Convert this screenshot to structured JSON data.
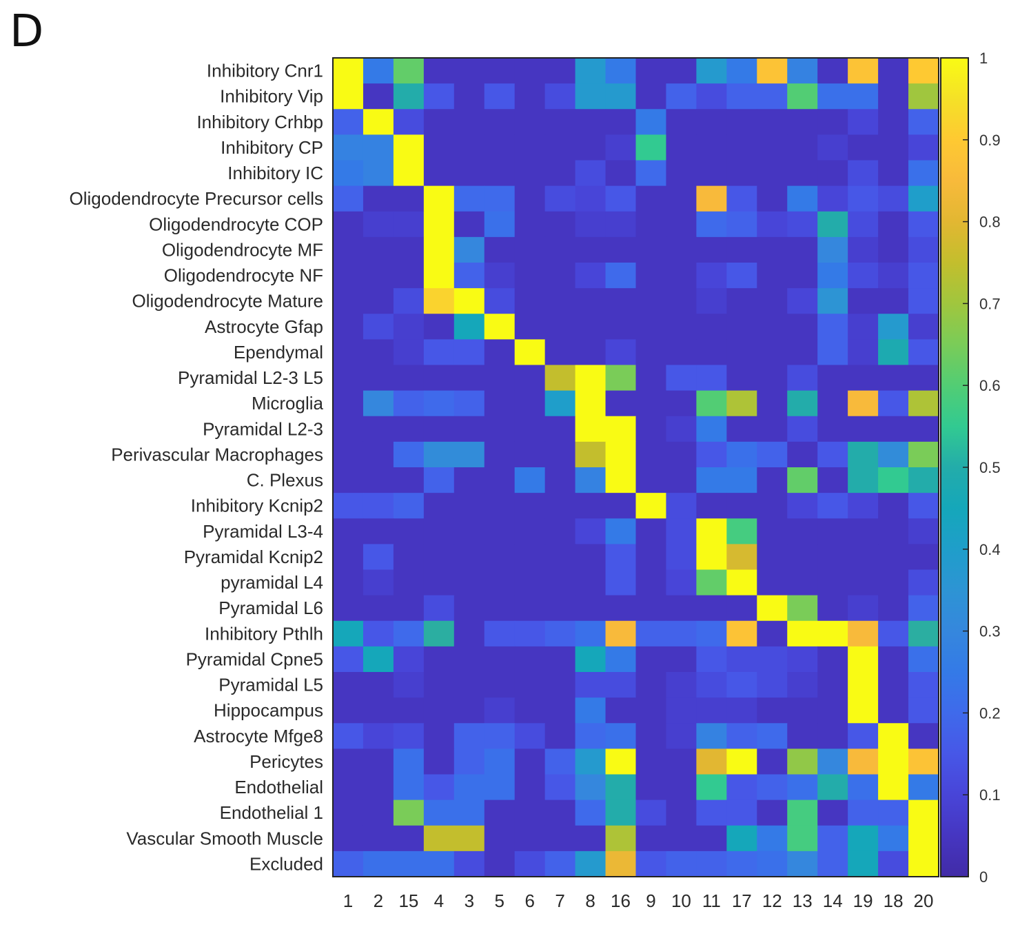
{
  "panel_label": "D",
  "chart_data": {
    "type": "heatmap",
    "title": "",
    "xlabel": "",
    "ylabel": "",
    "colormap": "parula",
    "value_range": [
      0,
      1
    ],
    "grid": false,
    "colorbar": {
      "position": "right",
      "ticks": [
        0,
        0.1,
        0.2,
        0.3,
        0.4,
        0.5,
        0.6,
        0.7,
        0.8,
        0.9,
        1
      ],
      "tick_labels": [
        "0",
        "0.1",
        "0.2",
        "0.3",
        "0.4",
        "0.5",
        "0.6",
        "0.7",
        "0.8",
        "0.9",
        "1"
      ]
    },
    "x_categories": [
      "1",
      "2",
      "15",
      "4",
      "3",
      "5",
      "6",
      "7",
      "8",
      "16",
      "9",
      "10",
      "11",
      "17",
      "12",
      "13",
      "14",
      "19",
      "18",
      "20"
    ],
    "y_categories": [
      "Inhibitory Cnr1",
      "Inhibitory Vip",
      "Inhibitory Crhbp",
      "Inhibitory CP",
      "Inhibitory IC",
      "Oligodendrocyte Precursor cells",
      "Oligodendrocyte COP",
      "Oligodendrocyte MF",
      "Oligodendrocyte NF",
      "Oligodendrocyte Mature",
      "Astrocyte Gfap",
      "Ependymal",
      "Pyramidal L2-3 L5",
      "Microglia",
      "Pyramidal L2-3",
      "Perivascular Macrophages",
      "C. Plexus",
      "Inhibitory Kcnip2",
      "Pyramidal L3-4",
      "Pyramidal Kcnip2",
      "pyramidal L4",
      "Pyramidal L6",
      "Inhibitory Pthlh",
      "Pyramidal Cpne5",
      "Pyramidal L5",
      "Hippocampus",
      "Astrocyte Mfge8",
      "Pericytes",
      "Endothelial",
      "Endothelial 1",
      "Vascular Smooth Muscle",
      "Excluded"
    ],
    "values": [
      [
        1,
        0.25,
        0.62,
        0.05,
        0.05,
        0.05,
        0.05,
        0.05,
        0.38,
        0.25,
        0.05,
        0.05,
        0.38,
        0.25,
        0.88,
        0.28,
        0.05,
        0.88,
        0.05,
        0.9
      ],
      [
        1,
        0.05,
        0.5,
        0.15,
        0.05,
        0.15,
        0.05,
        0.12,
        0.38,
        0.38,
        0.05,
        0.18,
        0.12,
        0.18,
        0.18,
        0.6,
        0.22,
        0.22,
        0.05,
        0.7
      ],
      [
        0.18,
        1,
        0.12,
        0.05,
        0.05,
        0.05,
        0.05,
        0.05,
        0.05,
        0.05,
        0.25,
        0.05,
        0.05,
        0.05,
        0.05,
        0.05,
        0.05,
        0.1,
        0.05,
        0.18
      ],
      [
        0.28,
        0.28,
        1,
        0.05,
        0.05,
        0.05,
        0.05,
        0.05,
        0.05,
        0.08,
        0.55,
        0.05,
        0.05,
        0.05,
        0.05,
        0.05,
        0.08,
        0.05,
        0.05,
        0.1
      ],
      [
        0.25,
        0.28,
        1,
        0.05,
        0.05,
        0.05,
        0.05,
        0.05,
        0.12,
        0.05,
        0.2,
        0.05,
        0.05,
        0.05,
        0.05,
        0.05,
        0.05,
        0.12,
        0.05,
        0.22
      ],
      [
        0.18,
        0.05,
        0.05,
        1,
        0.2,
        0.2,
        0.05,
        0.12,
        0.1,
        0.15,
        0.05,
        0.05,
        0.85,
        0.15,
        0.05,
        0.25,
        0.1,
        0.15,
        0.12,
        0.4
      ],
      [
        0.05,
        0.08,
        0.08,
        1,
        0.05,
        0.22,
        0.05,
        0.05,
        0.08,
        0.08,
        0.05,
        0.05,
        0.2,
        0.18,
        0.1,
        0.12,
        0.5,
        0.12,
        0.05,
        0.15
      ],
      [
        0.05,
        0.05,
        0.05,
        1,
        0.3,
        0.05,
        0.05,
        0.05,
        0.05,
        0.05,
        0.05,
        0.05,
        0.05,
        0.05,
        0.05,
        0.05,
        0.3,
        0.08,
        0.05,
        0.12
      ],
      [
        0.05,
        0.05,
        0.05,
        1,
        0.18,
        0.08,
        0.05,
        0.05,
        0.1,
        0.2,
        0.05,
        0.05,
        0.1,
        0.15,
        0.05,
        0.05,
        0.25,
        0.12,
        0.08,
        0.15
      ],
      [
        0.05,
        0.05,
        0.12,
        0.92,
        1,
        0.12,
        0.05,
        0.05,
        0.05,
        0.05,
        0.05,
        0.05,
        0.08,
        0.05,
        0.05,
        0.1,
        0.35,
        0.05,
        0.05,
        0.15
      ],
      [
        0.05,
        0.12,
        0.08,
        0.05,
        0.45,
        1,
        0.05,
        0.05,
        0.05,
        0.05,
        0.05,
        0.05,
        0.05,
        0.05,
        0.05,
        0.05,
        0.18,
        0.08,
        0.38,
        0.08
      ],
      [
        0.05,
        0.05,
        0.08,
        0.15,
        0.15,
        0.05,
        1,
        0.05,
        0.05,
        0.1,
        0.05,
        0.05,
        0.05,
        0.05,
        0.05,
        0.05,
        0.18,
        0.08,
        0.48,
        0.15
      ],
      [
        0.05,
        0.05,
        0.05,
        0.05,
        0.05,
        0.05,
        0.05,
        0.75,
        1,
        0.65,
        0.05,
        0.15,
        0.15,
        0.05,
        0.05,
        0.12,
        0.05,
        0.05,
        0.05,
        0.05
      ],
      [
        0.05,
        0.3,
        0.18,
        0.2,
        0.18,
        0.05,
        0.05,
        0.4,
        1,
        0.05,
        0.05,
        0.05,
        0.6,
        0.72,
        0.05,
        0.5,
        0.05,
        0.85,
        0.15,
        0.72
      ],
      [
        0.05,
        0.05,
        0.05,
        0.05,
        0.05,
        0.05,
        0.05,
        0.05,
        1,
        1,
        0.05,
        0.08,
        0.25,
        0.05,
        0.05,
        0.12,
        0.05,
        0.05,
        0.05,
        0.05
      ],
      [
        0.05,
        0.05,
        0.2,
        0.32,
        0.32,
        0.05,
        0.05,
        0.05,
        0.75,
        1,
        0.05,
        0.05,
        0.15,
        0.22,
        0.18,
        0.05,
        0.15,
        0.5,
        0.32,
        0.65
      ],
      [
        0.05,
        0.05,
        0.05,
        0.18,
        0.05,
        0.05,
        0.25,
        0.05,
        0.28,
        1,
        0.05,
        0.05,
        0.25,
        0.25,
        0.05,
        0.62,
        0.05,
        0.5,
        0.55,
        0.5
      ],
      [
        0.15,
        0.15,
        0.18,
        0.05,
        0.05,
        0.05,
        0.05,
        0.05,
        0.05,
        0.05,
        1,
        0.12,
        0.05,
        0.05,
        0.05,
        0.1,
        0.15,
        0.1,
        0.05,
        0.15
      ],
      [
        0.05,
        0.05,
        0.05,
        0.05,
        0.05,
        0.05,
        0.05,
        0.05,
        0.1,
        0.25,
        0.05,
        0.12,
        1,
        0.58,
        0.05,
        0.05,
        0.05,
        0.05,
        0.05,
        0.08
      ],
      [
        0.05,
        0.15,
        0.05,
        0.05,
        0.05,
        0.05,
        0.05,
        0.05,
        0.05,
        0.15,
        0.05,
        0.12,
        1,
        0.78,
        0.05,
        0.05,
        0.05,
        0.05,
        0.05,
        0.05
      ],
      [
        0.05,
        0.08,
        0.05,
        0.05,
        0.05,
        0.05,
        0.05,
        0.05,
        0.05,
        0.15,
        0.05,
        0.1,
        0.62,
        1,
        0.05,
        0.05,
        0.05,
        0.05,
        0.05,
        0.12
      ],
      [
        0.05,
        0.05,
        0.05,
        0.12,
        0.05,
        0.05,
        0.05,
        0.05,
        0.05,
        0.05,
        0.05,
        0.05,
        0.05,
        0.05,
        1,
        0.65,
        0.05,
        0.08,
        0.05,
        0.18
      ],
      [
        0.45,
        0.15,
        0.2,
        0.52,
        0.05,
        0.15,
        0.15,
        0.18,
        0.22,
        0.85,
        0.18,
        0.18,
        0.2,
        0.88,
        0.05,
        1,
        1,
        0.85,
        0.15,
        0.52
      ],
      [
        0.15,
        0.45,
        0.1,
        0.05,
        0.05,
        0.05,
        0.05,
        0.05,
        0.45,
        0.25,
        0.05,
        0.05,
        0.15,
        0.12,
        0.12,
        0.1,
        0.05,
        1,
        0.05,
        0.22
      ],
      [
        0.05,
        0.05,
        0.08,
        0.05,
        0.05,
        0.05,
        0.05,
        0.05,
        0.12,
        0.12,
        0.05,
        0.08,
        0.12,
        0.15,
        0.12,
        0.08,
        0.05,
        1,
        0.05,
        0.15
      ],
      [
        0.05,
        0.05,
        0.05,
        0.05,
        0.05,
        0.08,
        0.05,
        0.05,
        0.25,
        0.05,
        0.05,
        0.08,
        0.08,
        0.08,
        0.05,
        0.05,
        0.05,
        1,
        0.05,
        0.15
      ],
      [
        0.15,
        0.1,
        0.12,
        0.05,
        0.18,
        0.18,
        0.12,
        0.05,
        0.2,
        0.22,
        0.05,
        0.08,
        0.28,
        0.18,
        0.2,
        0.05,
        0.05,
        0.15,
        1,
        0.05
      ],
      [
        0.05,
        0.05,
        0.22,
        0.05,
        0.18,
        0.22,
        0.05,
        0.18,
        0.38,
        1,
        0.05,
        0.05,
        0.8,
        1,
        0.05,
        0.68,
        0.3,
        0.85,
        1,
        0.88
      ],
      [
        0.05,
        0.05,
        0.22,
        0.15,
        0.22,
        0.22,
        0.05,
        0.15,
        0.3,
        0.5,
        0.05,
        0.05,
        0.55,
        0.15,
        0.18,
        0.22,
        0.5,
        0.22,
        1,
        0.25
      ],
      [
        0.05,
        0.05,
        0.65,
        0.22,
        0.22,
        0.05,
        0.05,
        0.05,
        0.2,
        0.5,
        0.12,
        0.05,
        0.15,
        0.15,
        0.05,
        0.58,
        0.05,
        0.18,
        0.18,
        1
      ],
      [
        0.05,
        0.05,
        0.05,
        0.75,
        0.75,
        0.05,
        0.05,
        0.05,
        0.05,
        0.72,
        0.05,
        0.05,
        0.05,
        0.45,
        0.25,
        0.58,
        0.18,
        0.45,
        0.25,
        1
      ],
      [
        0.18,
        0.22,
        0.22,
        0.22,
        0.12,
        0.05,
        0.12,
        0.18,
        0.38,
        0.82,
        0.15,
        0.18,
        0.18,
        0.2,
        0.22,
        0.3,
        0.18,
        0.45,
        0.12,
        1
      ]
    ]
  }
}
